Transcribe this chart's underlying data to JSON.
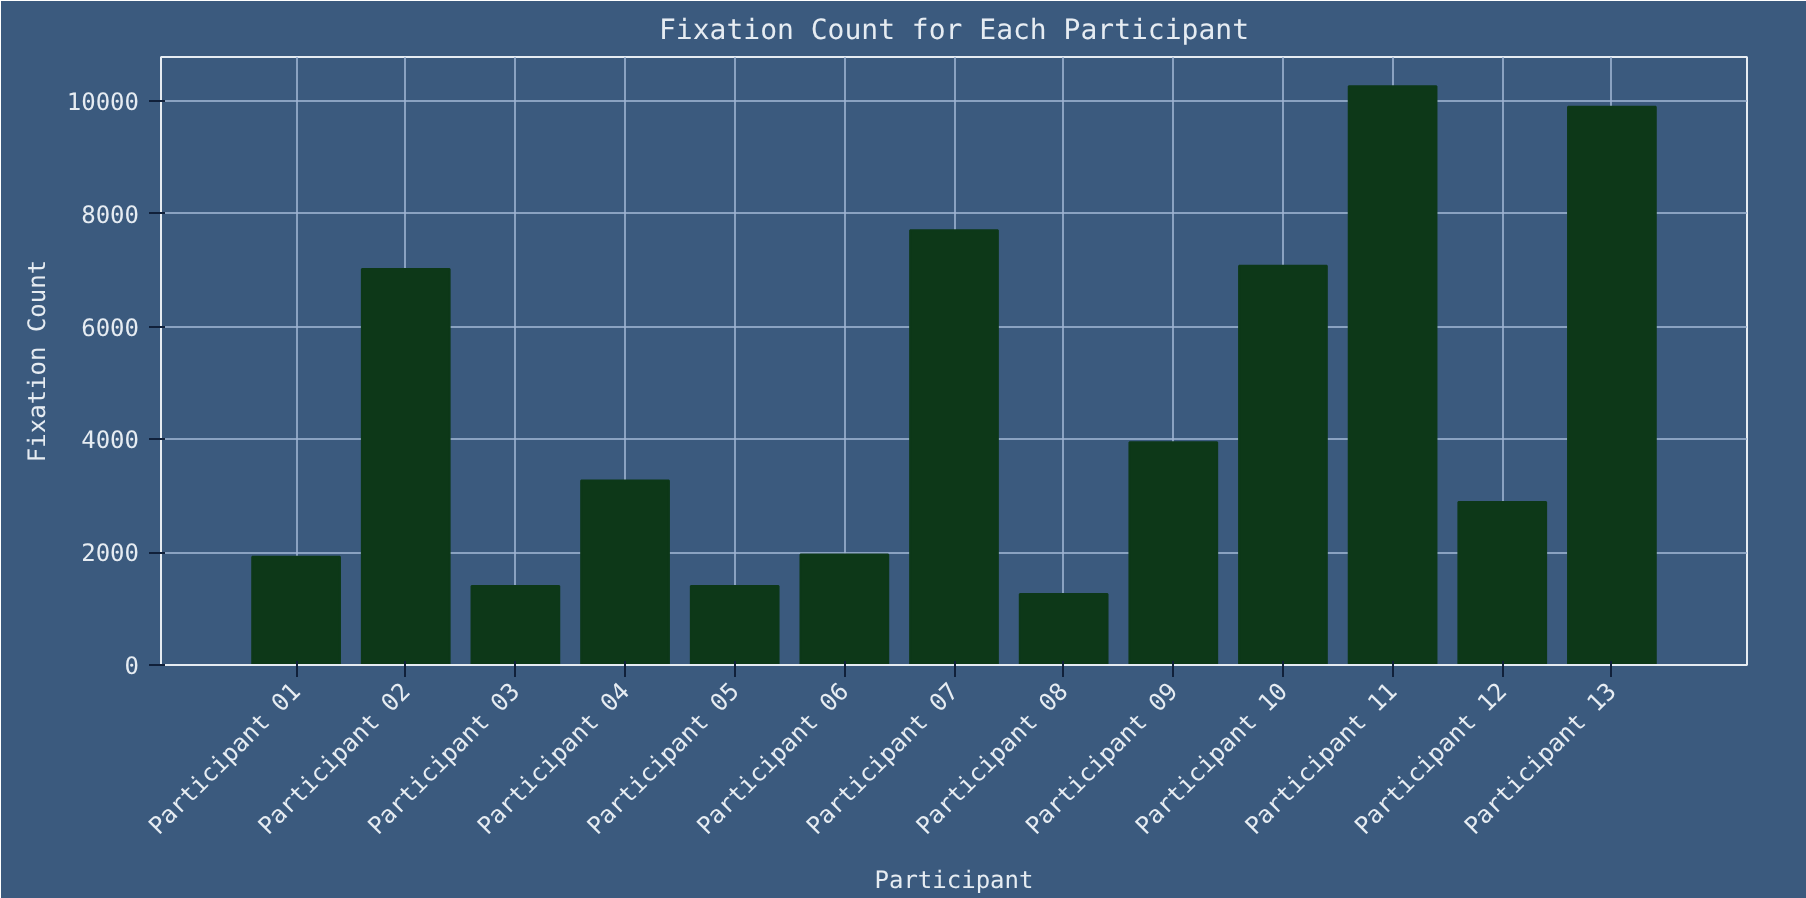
{
  "chart_data": {
    "type": "bar",
    "title": "Fixation Count for Each Participant",
    "xlabel": "Participant",
    "ylabel": "Fixation Count",
    "categories": [
      "Participant 01",
      "Participant 02",
      "Participant 03",
      "Participant 04",
      "Participant 05",
      "Participant 06",
      "Participant 07",
      "Participant 08",
      "Participant 09",
      "Participant 10",
      "Participant 11",
      "Participant 12",
      "Participant 13"
    ],
    "values": [
      1920,
      7020,
      1400,
      3270,
      1400,
      1960,
      7710,
      1260,
      3950,
      7080,
      10260,
      2890,
      9900
    ],
    "color": "#0d3818",
    "ylim": [
      0,
      10780
    ],
    "yticks": [
      0,
      2000,
      4000,
      6000,
      8000,
      10000
    ],
    "grid": true
  }
}
